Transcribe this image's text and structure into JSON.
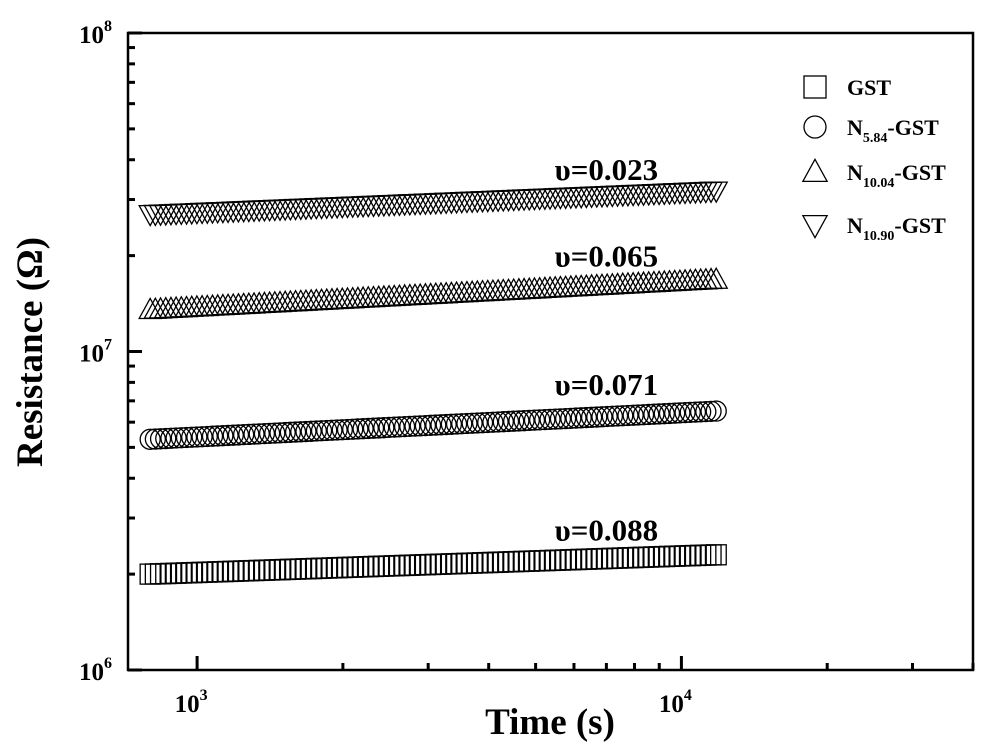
{
  "chart_data": {
    "type": "scatter",
    "xlabel": "Time (s)",
    "ylabel": "Resistance (Ω)",
    "x_scale": "log",
    "y_scale": "log",
    "xlim": [
      720,
      40000
    ],
    "ylim": [
      1000000,
      100000000
    ],
    "x_ticks": [
      {
        "base": "10",
        "exp": "3",
        "value": 1000
      },
      {
        "base": "10",
        "exp": "4",
        "value": 10000
      }
    ],
    "y_ticks": [
      {
        "base": "10",
        "exp": "6",
        "value": 1000000
      },
      {
        "base": "10",
        "exp": "7",
        "value": 10000000
      },
      {
        "base": "10",
        "exp": "8",
        "value": 100000000
      }
    ],
    "grid": false,
    "legend_position": "top-right",
    "series": [
      {
        "name": "GST",
        "sub": "",
        "marker": "square",
        "t_start": 800,
        "t_end": 11800,
        "r_start": 2000000,
        "r_end": 2300000,
        "n_points": 110
      },
      {
        "name": "N",
        "sub": "5.84",
        "suffix": "-GST",
        "marker": "circle",
        "t_start": 800,
        "t_end": 11800,
        "r_start": 5300000,
        "r_end": 6500000,
        "n_points": 110
      },
      {
        "name": "N",
        "sub": "10.04",
        "suffix": "-GST",
        "marker": "triangle-up",
        "t_start": 800,
        "t_end": 11800,
        "r_start": 13500000,
        "r_end": 16800000,
        "n_points": 110
      },
      {
        "name": "N",
        "sub": "10.90",
        "suffix": "-GST",
        "marker": "triangle-down",
        "t_start": 800,
        "t_end": 11800,
        "r_start": 27000000,
        "r_end": 32000000,
        "n_points": 110
      }
    ],
    "annotations": [
      {
        "text": "υ=0.088",
        "x": 7000,
        "y": 2550000
      },
      {
        "text": "υ=0.071",
        "x": 7000,
        "y": 7300000
      },
      {
        "text": "υ=0.065",
        "x": 7000,
        "y": 18500000
      },
      {
        "text": "υ=0.023",
        "x": 7000,
        "y": 34500000
      }
    ]
  }
}
